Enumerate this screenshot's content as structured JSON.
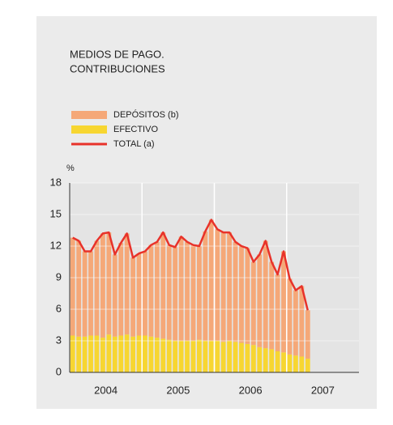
{
  "chart_data": {
    "type": "stacked_bar_line",
    "title": [
      "MEDIOS DE PAGO.",
      "CONTRIBUCIONES"
    ],
    "y_unit": "%",
    "categories": [
      null,
      null,
      null,
      null,
      null,
      null,
      null,
      null,
      null,
      null,
      null,
      null,
      null,
      null,
      null,
      null,
      null,
      null,
      null,
      null,
      null,
      null,
      null,
      null,
      null,
      null,
      null,
      null,
      null,
      null,
      null,
      null,
      null,
      null,
      null,
      null,
      null,
      null,
      null,
      null
    ],
    "series": [
      {
        "name": "EFECTIVO",
        "kind": "bar",
        "color": "#f7d631",
        "values": [
          3.5,
          3.4,
          3.4,
          3.5,
          3.5,
          3.3,
          3.6,
          3.4,
          3.5,
          3.6,
          3.4,
          3.5,
          3.5,
          3.4,
          3.3,
          3.2,
          3.1,
          3.0,
          3.0,
          3.0,
          3.0,
          3.1,
          3.0,
          3.0,
          3.0,
          2.9,
          3.0,
          2.9,
          2.8,
          2.7,
          2.6,
          2.4,
          2.3,
          2.2,
          2.0,
          1.9,
          1.7,
          1.6,
          1.5,
          1.3
        ]
      },
      {
        "name": "DEPÓSITOS (b)",
        "kind": "bar",
        "color": "#f5a878",
        "values": [
          9.3,
          9.1,
          8.1,
          8.0,
          9.0,
          9.9,
          9.7,
          7.8,
          8.8,
          9.6,
          7.5,
          7.8,
          8.0,
          8.7,
          9.1,
          10.1,
          9.0,
          8.9,
          9.9,
          9.4,
          9.1,
          8.9,
          10.4,
          11.5,
          10.6,
          10.4,
          10.3,
          9.5,
          9.2,
          9.1,
          7.9,
          8.8,
          10.2,
          8.3,
          7.3,
          9.6,
          7.2,
          6.2,
          6.7,
          4.6
        ]
      },
      {
        "name": "TOTAL (a)",
        "kind": "line",
        "color": "#e8322a",
        "values": [
          12.8,
          12.5,
          11.5,
          11.5,
          12.5,
          13.2,
          13.3,
          11.2,
          12.3,
          13.2,
          10.9,
          11.3,
          11.5,
          12.1,
          12.4,
          13.3,
          12.1,
          11.9,
          12.9,
          12.4,
          12.1,
          12.0,
          13.4,
          14.5,
          13.6,
          13.3,
          13.3,
          12.4,
          12.0,
          11.8,
          10.5,
          11.2,
          12.5,
          10.5,
          9.3,
          11.5,
          8.9,
          7.8,
          8.2,
          5.9
        ]
      }
    ],
    "legend_order": [
      1,
      0,
      2
    ],
    "ylim": [
      0,
      18
    ],
    "yticks": [
      0,
      3,
      6,
      9,
      12,
      15,
      18
    ],
    "xlim": [
      0,
      48
    ],
    "xticks": [
      {
        "value": 6,
        "label": "2004"
      },
      {
        "value": 18,
        "label": "2005"
      },
      {
        "value": 30,
        "label": "2006"
      },
      {
        "value": 42,
        "label": "2007"
      }
    ],
    "xgrid": [
      12,
      24,
      36
    ],
    "grid": true
  }
}
